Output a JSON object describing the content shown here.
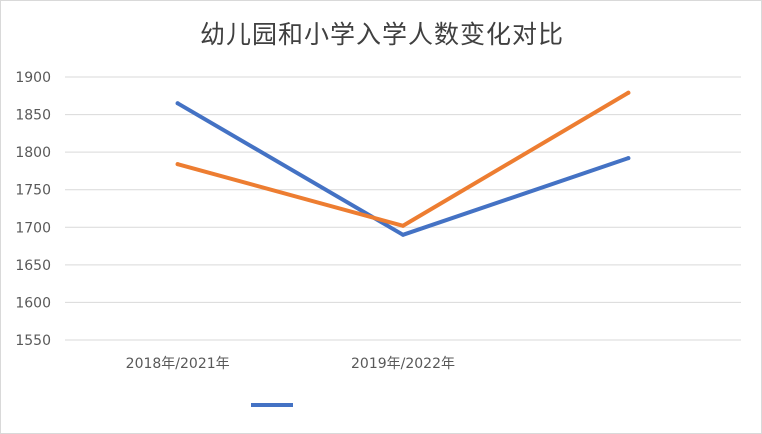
{
  "chart_data": {
    "type": "line",
    "title": "幼儿园和小学入学人数变化对比",
    "categories": [
      "2018年/2021年",
      "2019年/2022年",
      ""
    ],
    "series": [
      {
        "values": [
          1865,
          1690,
          1792
        ],
        "color": "#4472C4"
      },
      {
        "values": [
          1784,
          1702,
          1879
        ],
        "color": "#ED7D31"
      }
    ],
    "yticks": [
      "1900",
      "1850",
      "1800",
      "1750",
      "1700",
      "1650",
      "1600",
      "1550"
    ],
    "ylim": [
      1550,
      1900
    ],
    "grid": true,
    "legend_position": "bottom"
  }
}
